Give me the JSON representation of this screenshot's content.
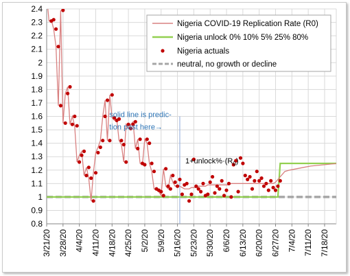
{
  "chart_data": {
    "type": "line",
    "title": "",
    "xlabel": "",
    "ylabel": "",
    "ylim": [
      0.8,
      2.4
    ],
    "yticks": [
      "0.8",
      "0.9",
      "1",
      "1.1",
      "1.2",
      "1.3",
      "1.4",
      "1.5",
      "1.6",
      "1.7",
      "1.8",
      "1.9",
      "2",
      "2.1",
      "2.2",
      "2.3",
      "2.4"
    ],
    "xlim": [
      "2020-03-21",
      "2020-07-23"
    ],
    "xticks": [
      "3/21/20",
      "3/28/20",
      "4/4/20",
      "4/11/20",
      "4/18/20",
      "4/25/20",
      "5/2/20",
      "5/9/20",
      "5/16/20",
      "5/23/20",
      "5/30/20",
      "6/6/20",
      "6/13/20",
      "6/20/20",
      "6/27/20",
      "7/4/20",
      "7/11/20",
      "7/18/20"
    ],
    "grid": true,
    "legend_position": "top-right",
    "colors": {
      "r0": "#d88080",
      "actuals": "#c00000",
      "unlock": "#92d050",
      "neutral": "#a6a6a6",
      "annotation": "#2e75b6",
      "vline": "#8ea9db"
    },
    "series": [
      {
        "name": "Nigeria COVID-19 Replication Rate (R0)",
        "kind": "line",
        "x": [
          "2020-03-21",
          "2020-03-22",
          "2020-03-23",
          "2020-03-24",
          "2020-03-25",
          "2020-03-26",
          "2020-03-27",
          "2020-03-28",
          "2020-03-29",
          "2020-03-30",
          "2020-03-31",
          "2020-04-01",
          "2020-04-02",
          "2020-04-03",
          "2020-04-04",
          "2020-04-05",
          "2020-04-06",
          "2020-04-07",
          "2020-04-08",
          "2020-04-09",
          "2020-04-10",
          "2020-04-11",
          "2020-04-12",
          "2020-04-13",
          "2020-04-14",
          "2020-04-15",
          "2020-04-16",
          "2020-04-17",
          "2020-04-18",
          "2020-04-19",
          "2020-04-20",
          "2020-04-21",
          "2020-04-22",
          "2020-04-23",
          "2020-04-24",
          "2020-04-25",
          "2020-04-26",
          "2020-04-27",
          "2020-04-28",
          "2020-04-29",
          "2020-04-30",
          "2020-05-01",
          "2020-05-02",
          "2020-05-03",
          "2020-05-04",
          "2020-05-05",
          "2020-05-06",
          "2020-05-07",
          "2020-05-08",
          "2020-05-09",
          "2020-05-10",
          "2020-05-11",
          "2020-05-12",
          "2020-05-13",
          "2020-05-14",
          "2020-05-15",
          "2020-05-16",
          "2020-05-17",
          "2020-05-18",
          "2020-05-19",
          "2020-05-20",
          "2020-05-21",
          "2020-05-22",
          "2020-05-23",
          "2020-05-24",
          "2020-05-25",
          "2020-05-26",
          "2020-05-27",
          "2020-05-28",
          "2020-05-29",
          "2020-05-30",
          "2020-05-31",
          "2020-06-01",
          "2020-06-02",
          "2020-06-03",
          "2020-06-04",
          "2020-06-05",
          "2020-06-06",
          "2020-06-07",
          "2020-06-08",
          "2020-06-09",
          "2020-06-10",
          "2020-06-11",
          "2020-06-12",
          "2020-06-13",
          "2020-06-14",
          "2020-06-15",
          "2020-06-16",
          "2020-06-17",
          "2020-06-18",
          "2020-06-19",
          "2020-06-20",
          "2020-06-21",
          "2020-06-22",
          "2020-06-23",
          "2020-06-24",
          "2020-06-25",
          "2020-06-26",
          "2020-06-27",
          "2020-06-28",
          "2020-06-29",
          "2020-06-30",
          "2020-07-01",
          "2020-07-03",
          "2020-07-06",
          "2020-07-09",
          "2020-07-12",
          "2020-07-15",
          "2020-07-18",
          "2020-07-21",
          "2020-07-23"
        ],
        "y": [
          2.5,
          2.31,
          2.32,
          2.25,
          2.12,
          1.68,
          2.39,
          1.55,
          1.77,
          1.82,
          1.54,
          1.6,
          1.53,
          1.26,
          1.31,
          1.34,
          1.16,
          1.22,
          1.14,
          0.97,
          1.18,
          1.33,
          1.37,
          1.42,
          1.6,
          1.72,
          1.42,
          1.76,
          1.59,
          1.57,
          1.58,
          1.42,
          1.39,
          1.26,
          1.54,
          1.51,
          1.54,
          1.56,
          1.36,
          1.43,
          1.25,
          1.24,
          1.43,
          1.4,
          1.25,
          1.19,
          1.06,
          1.05,
          1.04,
          1.01,
          1.21,
          1.08,
          1.06,
          1.16,
          1.11,
          1.08,
          1.09,
          1.08,
          1.07,
          1.06,
          1.06,
          1.06,
          1.07,
          1.07,
          1.07,
          1.08,
          1.08,
          1.08,
          1.08,
          1.09,
          1.09,
          1.09,
          1.09,
          1.09,
          1.09,
          1.09,
          1.09,
          1.09,
          1.09,
          1.1,
          1.1,
          1.1,
          1.1,
          1.1,
          1.1,
          1.1,
          1.1,
          1.1,
          1.1,
          1.1,
          1.1,
          1.1,
          1.1,
          1.1,
          1.1,
          1.1,
          1.1,
          1.1,
          1.11,
          1.13,
          1.15,
          1.17,
          1.19,
          1.2,
          1.21,
          1.22,
          1.23,
          1.235,
          1.24,
          1.245,
          1.248
        ]
      },
      {
        "name": "Nigeria unlock 0% 10% 5% 25% 80%",
        "kind": "line",
        "x": [
          "2020-03-21",
          "2020-06-28",
          "2020-06-29",
          "2020-07-23"
        ],
        "y": [
          1.0,
          1.0,
          1.25,
          1.25
        ]
      },
      {
        "name": "Nigeria actuals",
        "kind": "scatter",
        "x": [
          "2020-03-23",
          "2020-03-24",
          "2020-03-25",
          "2020-03-26",
          "2020-03-27",
          "2020-03-28",
          "2020-03-29",
          "2020-03-30",
          "2020-03-31",
          "2020-04-01",
          "2020-04-02",
          "2020-04-03",
          "2020-04-04",
          "2020-04-05",
          "2020-04-06",
          "2020-04-07",
          "2020-04-08",
          "2020-04-09",
          "2020-04-10",
          "2020-04-11",
          "2020-04-12",
          "2020-04-13",
          "2020-04-14",
          "2020-04-15",
          "2020-04-16",
          "2020-04-17",
          "2020-04-18",
          "2020-04-19",
          "2020-04-20",
          "2020-04-21",
          "2020-04-22",
          "2020-04-23",
          "2020-04-24",
          "2020-04-25",
          "2020-04-26",
          "2020-04-27",
          "2020-04-28",
          "2020-04-29",
          "2020-04-30",
          "2020-05-01",
          "2020-05-02",
          "2020-05-03",
          "2020-05-04",
          "2020-05-05",
          "2020-05-06",
          "2020-05-07",
          "2020-05-08",
          "2020-05-09",
          "2020-05-10",
          "2020-05-11",
          "2020-05-12",
          "2020-05-13",
          "2020-05-14",
          "2020-05-15",
          "2020-05-16",
          "2020-05-17",
          "2020-05-18",
          "2020-05-19",
          "2020-05-20",
          "2020-05-21",
          "2020-05-22",
          "2020-05-23",
          "2020-05-24",
          "2020-05-25",
          "2020-05-26",
          "2020-05-27",
          "2020-05-28",
          "2020-05-29",
          "2020-05-30",
          "2020-05-31",
          "2020-06-01",
          "2020-06-02",
          "2020-06-03",
          "2020-06-04",
          "2020-06-05",
          "2020-06-06",
          "2020-06-07",
          "2020-06-08",
          "2020-06-09",
          "2020-06-10",
          "2020-06-11",
          "2020-06-12",
          "2020-06-13",
          "2020-06-14",
          "2020-06-15",
          "2020-06-16",
          "2020-06-17",
          "2020-06-18",
          "2020-06-19",
          "2020-06-20",
          "2020-06-21",
          "2020-06-22",
          "2020-06-23",
          "2020-06-24",
          "2020-06-25",
          "2020-06-26",
          "2020-06-27",
          "2020-06-28",
          "2020-06-29"
        ],
        "y": [
          2.31,
          2.32,
          2.25,
          2.12,
          1.68,
          2.39,
          1.55,
          1.77,
          1.82,
          1.54,
          1.6,
          1.53,
          1.26,
          1.31,
          1.34,
          1.16,
          1.22,
          1.14,
          0.97,
          1.18,
          1.33,
          1.37,
          1.42,
          1.6,
          1.72,
          1.42,
          1.76,
          1.59,
          1.57,
          1.58,
          1.42,
          1.39,
          1.26,
          1.54,
          1.51,
          1.54,
          1.56,
          1.36,
          1.43,
          1.25,
          1.24,
          1.43,
          1.4,
          1.25,
          1.19,
          1.06,
          1.05,
          1.04,
          1.01,
          1.21,
          1.08,
          1.06,
          1.16,
          1.11,
          1.08,
          1.13,
          1.02,
          1.09,
          1.1,
          0.97,
          1.02,
          1.28,
          1.08,
          1.06,
          1.04,
          1.1,
          1.01,
          1.02,
          1.11,
          1.15,
          1.03,
          1.08,
          1.06,
          1.12,
          1.01,
          1.05,
          1.1,
          1.0,
          1.24,
          1.27,
          1.04,
          1.29,
          1.25,
          1.16,
          1.13,
          1.15,
          1.06,
          1.12,
          1.19,
          1.12,
          1.14,
          1.08,
          1.1,
          1.05,
          1.12,
          1.07,
          1.05,
          1.08,
          1.12
        ]
      },
      {
        "name": "neutral, no growth or decline",
        "kind": "line",
        "x": [
          "2020-03-21",
          "2020-07-23"
        ],
        "y": [
          1.0,
          1.0
        ]
      }
    ],
    "vertical_line_x": "2020-05-17",
    "annotations": [
      {
        "text_lines": [
          "solid line is predic-",
          "tion past here→"
        ],
        "x": "2020-04-18",
        "y": 1.595
      },
      {
        "text": "1+unlock%·(R",
        "sub": "0",
        "after": ")",
        "x": "2020-05-17",
        "y": 1.25
      }
    ]
  }
}
